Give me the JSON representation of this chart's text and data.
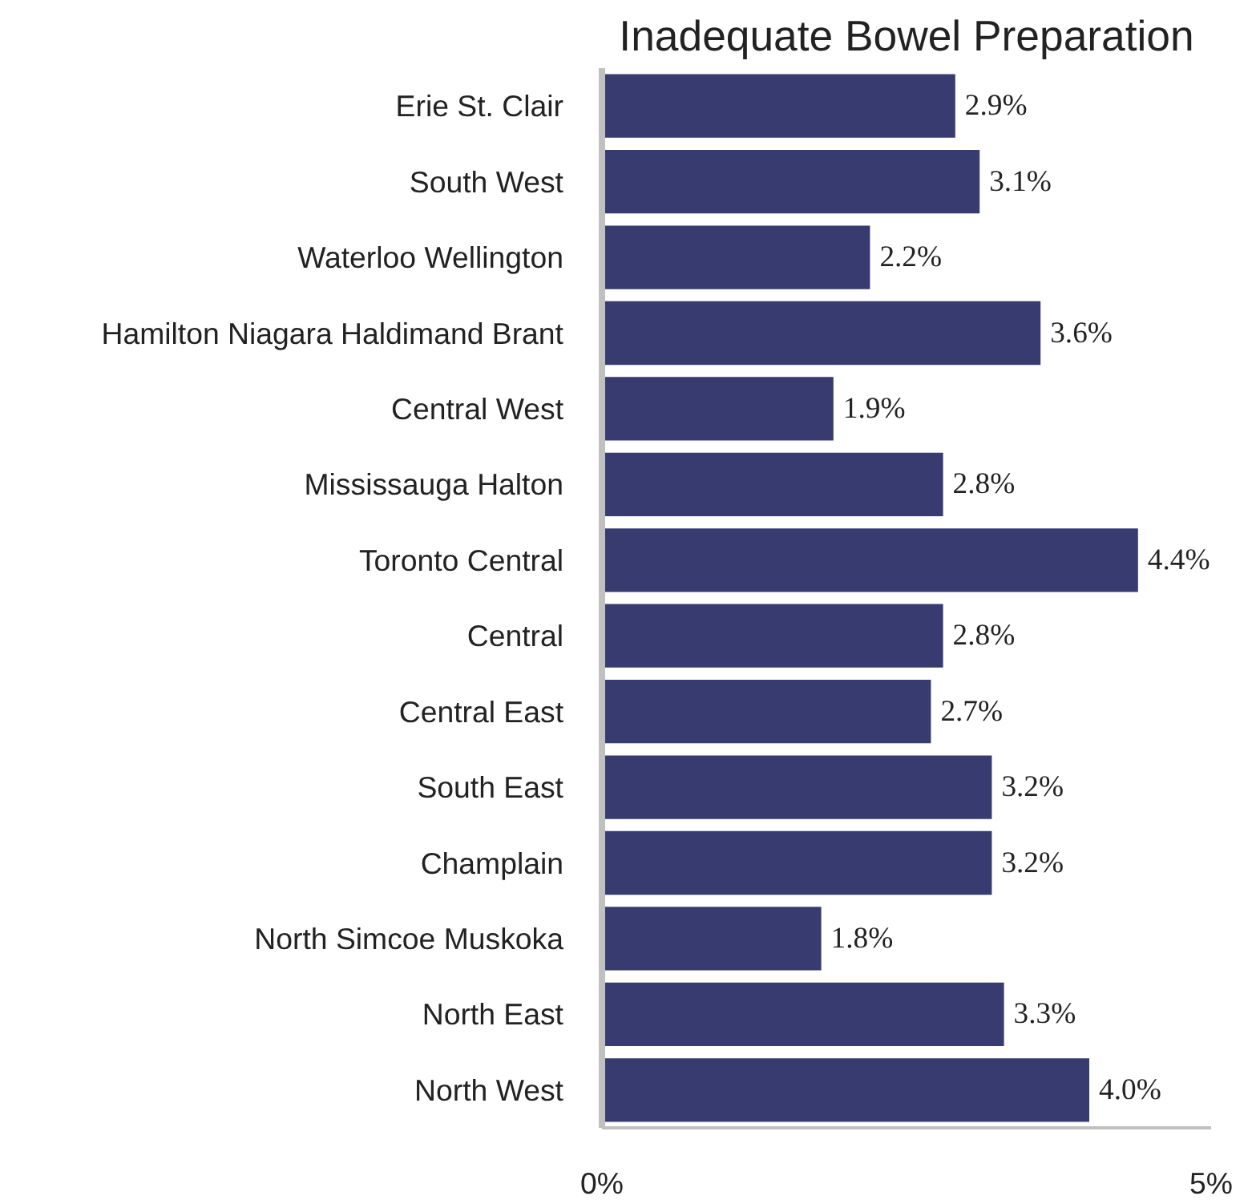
{
  "chart_data": {
    "type": "bar",
    "orientation": "horizontal",
    "title": "Inadequate Bowel Preparation",
    "categories": [
      "Erie St. Clair",
      "South West",
      "Waterloo Wellington",
      "Hamilton Niagara Haldimand Brant",
      "Central West",
      "Mississauga Halton",
      "Toronto Central",
      "Central",
      "Central East",
      "South East",
      "Champlain",
      "North Simcoe Muskoka",
      "North East",
      "North West"
    ],
    "values": [
      2.9,
      3.1,
      2.2,
      3.6,
      1.9,
      2.8,
      4.4,
      2.8,
      2.7,
      3.2,
      3.2,
      1.8,
      3.3,
      4.0
    ],
    "value_labels": [
      "2.9%",
      "3.1%",
      "2.2%",
      "3.6%",
      "1.9%",
      "2.8%",
      "4.4%",
      "2.8%",
      "2.7%",
      "3.2%",
      "3.2%",
      "1.8%",
      "3.3%",
      "4.0%"
    ],
    "color": "#373b6f",
    "xlim": [
      0,
      5
    ],
    "xticks": [
      {
        "value": 0,
        "label": "0%"
      },
      {
        "value": 5,
        "label": "5%"
      }
    ],
    "grid": false
  }
}
